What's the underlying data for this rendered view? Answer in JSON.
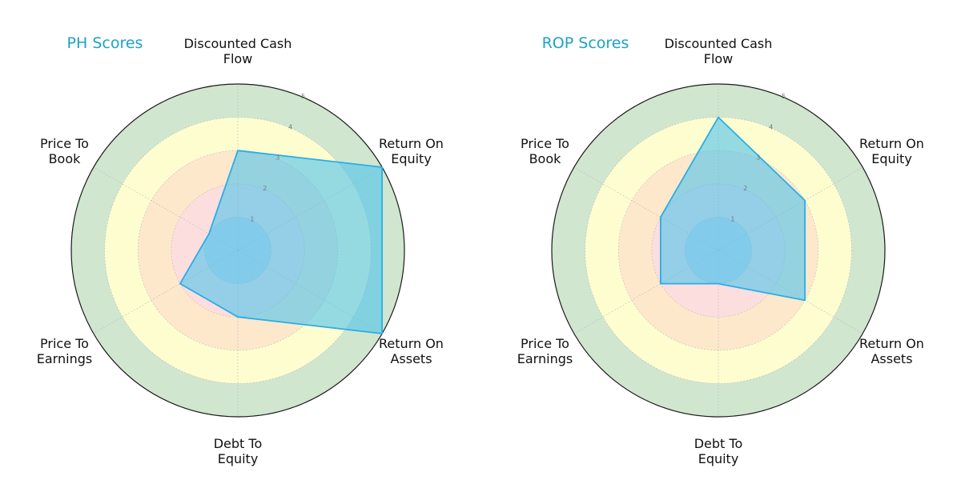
{
  "chart_data": [
    {
      "type": "radar",
      "title": "PH Scores",
      "categories": [
        "Discounted Cash Flow",
        "Return On Equity",
        "Return On Assets",
        "Debt To Equity",
        "Price To Earnings",
        "Price To Book"
      ],
      "rticks": [
        "1",
        "2",
        "3",
        "4",
        "5"
      ],
      "rlim": [
        0,
        5
      ],
      "bands": [
        {
          "from": 0,
          "to": 1,
          "color": "#d0d8e8"
        },
        {
          "from": 1,
          "to": 2,
          "color": "#fddede"
        },
        {
          "from": 2,
          "to": 3,
          "color": "#fde8cc"
        },
        {
          "from": 3,
          "to": 4,
          "color": "#fefdd0"
        },
        {
          "from": 4,
          "to": 5,
          "color": "#d0e6cf"
        }
      ],
      "series": [
        {
          "values": [
            3,
            5,
            5,
            2,
            2,
            1
          ],
          "color": "#29aee6",
          "fill": "#4fc3ec"
        }
      ]
    },
    {
      "type": "radar",
      "title": "ROP Scores",
      "categories": [
        "Discounted Cash Flow",
        "Return On Equity",
        "Return On Assets",
        "Debt To Equity",
        "Price To Earnings",
        "Price To Book"
      ],
      "rticks": [
        "1",
        "2",
        "3",
        "4",
        "5"
      ],
      "rlim": [
        0,
        5
      ],
      "bands": [
        {
          "from": 0,
          "to": 1,
          "color": "#d0d8e8"
        },
        {
          "from": 1,
          "to": 2,
          "color": "#fddede"
        },
        {
          "from": 2,
          "to": 3,
          "color": "#fde8cc"
        },
        {
          "from": 3,
          "to": 4,
          "color": "#fefdd0"
        },
        {
          "from": 4,
          "to": 5,
          "color": "#d0e6cf"
        }
      ],
      "series": [
        {
          "values": [
            4,
            3,
            3,
            1,
            2,
            2
          ],
          "color": "#29aee6",
          "fill": "#4fc3ec"
        }
      ]
    }
  ],
  "colors": {
    "title": "#1ba3c6",
    "outline": "#1a1a1a",
    "grid": "#bbbbbb"
  }
}
